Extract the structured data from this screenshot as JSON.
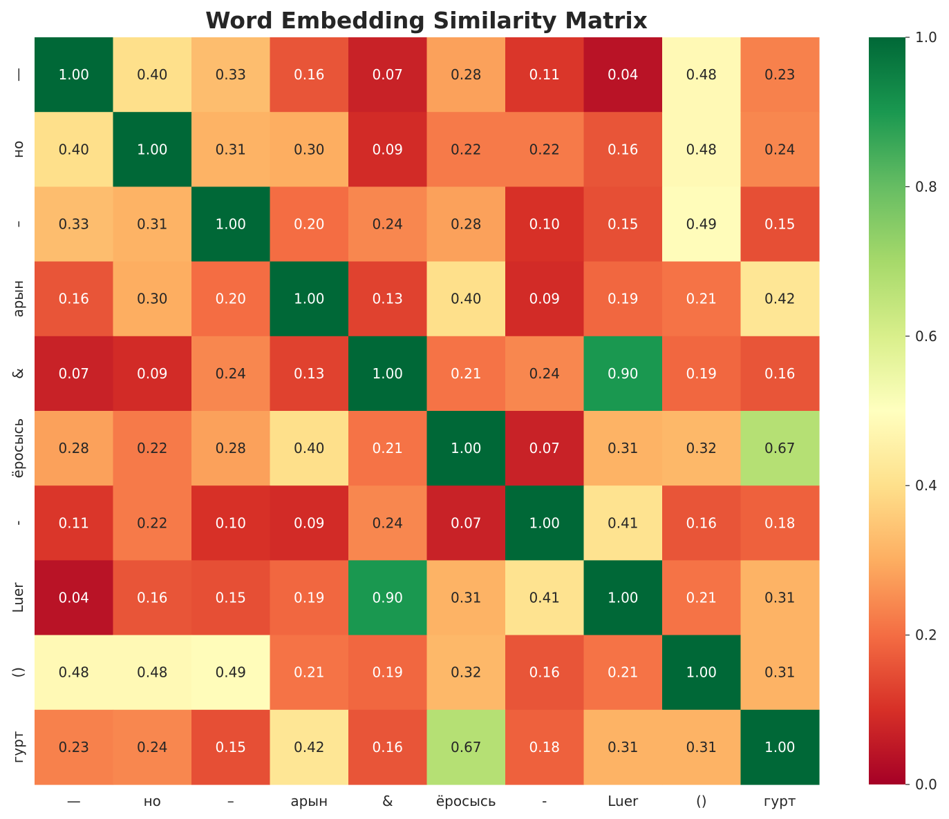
{
  "chart_data": {
    "type": "heatmap",
    "title": "Word Embedding Similarity Matrix",
    "xlabel": "",
    "ylabel": "",
    "categories": [
      "—",
      "но",
      "–",
      "арын",
      "&",
      "ёросысь",
      "-",
      "Luer",
      "()",
      "гурт"
    ],
    "values": [
      [
        1.0,
        0.4,
        0.33,
        0.16,
        0.07,
        0.28,
        0.11,
        0.04,
        0.48,
        0.23
      ],
      [
        0.4,
        1.0,
        0.31,
        0.3,
        0.09,
        0.22,
        0.22,
        0.16,
        0.48,
        0.24
      ],
      [
        0.33,
        0.31,
        1.0,
        0.2,
        0.24,
        0.28,
        0.1,
        0.15,
        0.49,
        0.15
      ],
      [
        0.16,
        0.3,
        0.2,
        1.0,
        0.13,
        0.4,
        0.09,
        0.19,
        0.21,
        0.42
      ],
      [
        0.07,
        0.09,
        0.24,
        0.13,
        1.0,
        0.21,
        0.24,
        0.9,
        0.19,
        0.16
      ],
      [
        0.28,
        0.22,
        0.28,
        0.4,
        0.21,
        1.0,
        0.07,
        0.31,
        0.32,
        0.67
      ],
      [
        0.11,
        0.22,
        0.1,
        0.09,
        0.24,
        0.07,
        1.0,
        0.41,
        0.16,
        0.18
      ],
      [
        0.04,
        0.16,
        0.15,
        0.19,
        0.9,
        0.31,
        0.41,
        1.0,
        0.21,
        0.31
      ],
      [
        0.48,
        0.48,
        0.49,
        0.21,
        0.19,
        0.32,
        0.16,
        0.21,
        1.0,
        0.31
      ],
      [
        0.23,
        0.24,
        0.15,
        0.42,
        0.16,
        0.67,
        0.18,
        0.31,
        0.31,
        1.0
      ]
    ],
    "value_format": "0.00",
    "colormap": "RdYlGn",
    "colorbar": {
      "range": [
        0.0,
        1.0
      ],
      "ticks": [
        0.0,
        0.2,
        0.4,
        0.6,
        0.8,
        1.0
      ],
      "tick_labels": [
        "0.0",
        "0.2",
        "0.4",
        "0.6",
        "0.8",
        "1.0"
      ]
    },
    "grid": false
  }
}
